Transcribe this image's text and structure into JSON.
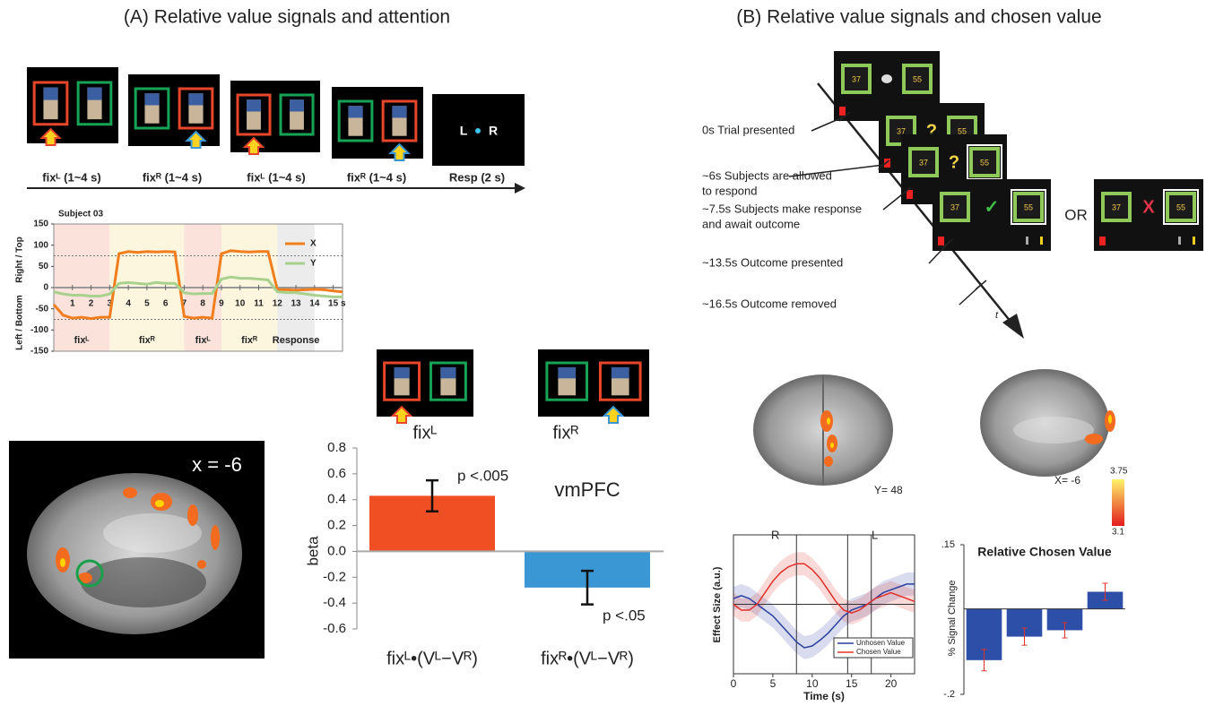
{
  "panels": [
    {
      "title": "(A) Relative value signals and attention"
    },
    {
      "title": "(B) Relative value signals and chosen value"
    }
  ],
  "timeline": {
    "steps": [
      "fixᴸ (1~4 s)",
      "fixᴿ (1~4 s)",
      "fixᴸ (1~4 s)",
      "fixᴿ (1~4 s)",
      "Resp (2 s)"
    ],
    "response_screen": {
      "left": "L",
      "right": "R"
    }
  },
  "brain_a": {
    "label": "x  = -6"
  },
  "flow": {
    "screens": [
      {
        "left": "37",
        "right": "55"
      },
      {
        "left": "37",
        "mid": "?",
        "right": "55"
      },
      {
        "left": "37",
        "mid": "?",
        "right": "55"
      },
      {
        "left": "37",
        "mid": "✓",
        "right": "55"
      },
      {
        "left": "37",
        "mid": "X",
        "right": "55"
      }
    ],
    "or": "OR",
    "events": [
      {
        "lines": [
          "0s Trial presented"
        ]
      },
      {
        "lines": [
          "~6s Subjects are allowed",
          "to respond"
        ]
      },
      {
        "lines": [
          "~7.5s Subjects make response",
          "and await outcome"
        ]
      },
      {
        "lines": [
          "~13.5s Outcome presented"
        ]
      },
      {
        "lines": [
          "~16.5s Outcome removed"
        ]
      }
    ],
    "time_label": "t"
  },
  "brain_b": {
    "coronal_label": "Y= 48",
    "right": "R",
    "left": "L",
    "sagittal_label": "X= -6",
    "colorbar_max": "3.75",
    "colorbar_min": "3.1"
  },
  "chart_data": [
    {
      "type": "line",
      "title": "Subject 03",
      "ylabel_top": "Right / Top",
      "ylabel_bottom": "Left / Bottom",
      "xlabel": "s",
      "x": [
        0,
        0.5,
        1,
        1.5,
        2,
        2.5,
        3,
        3.5,
        4,
        4.5,
        5,
        5.5,
        6,
        6.5,
        7,
        7.5,
        8,
        8.5,
        9,
        9.5,
        10,
        10.5,
        11,
        11.5,
        12,
        12.5,
        13,
        13.5,
        14,
        14.5,
        15,
        15.5
      ],
      "series": [
        {
          "name": "X",
          "color": "#f07d1e",
          "values": [
            -40,
            -65,
            -72,
            -70,
            -73,
            -70,
            -70,
            80,
            85,
            83,
            85,
            84,
            85,
            84,
            -68,
            -72,
            -70,
            -72,
            80,
            87,
            85,
            84,
            85,
            85,
            -5,
            -5,
            -6,
            -5,
            -4,
            -5,
            -8,
            -10
          ]
        },
        {
          "name": "Y",
          "color": "#a9d18e",
          "values": [
            -10,
            -15,
            -18,
            -18,
            -20,
            -20,
            -15,
            10,
            12,
            10,
            8,
            12,
            10,
            10,
            -12,
            -15,
            -14,
            -14,
            20,
            25,
            22,
            22,
            20,
            18,
            -10,
            -12,
            -12,
            -15,
            -18,
            -20,
            -22,
            -22
          ]
        }
      ],
      "xlim": [
        0,
        15.5
      ],
      "xticks": [
        1,
        2,
        3,
        4,
        5,
        6,
        7,
        8,
        9,
        10,
        11,
        12,
        13,
        14,
        15
      ],
      "ylim": [
        -150,
        150
      ],
      "yticks": [
        150,
        100,
        50,
        0,
        -50,
        -100,
        -150
      ],
      "reference_lines": [
        75,
        -75
      ],
      "phases": [
        {
          "label": "fixᴸ",
          "start": 0,
          "end": 3,
          "color": "#fbe3dc"
        },
        {
          "label": "fixᴿ",
          "start": 3,
          "end": 7,
          "color": "#fdf6df"
        },
        {
          "label": "fixᴸ",
          "start": 7,
          "end": 9,
          "color": "#fbe3dc"
        },
        {
          "label": "fixᴿ",
          "start": 9,
          "end": 12,
          "color": "#fdf6df"
        },
        {
          "label": "Response",
          "start": 12,
          "end": 14,
          "color": "#ececec"
        }
      ]
    },
    {
      "type": "bar",
      "ylabel": "beta",
      "categories": [
        "fixᴸ•(Vᴸ−Vᴿ)",
        "fixᴿ•(Vᴸ−Vᴿ)"
      ],
      "values": [
        0.43,
        -0.28
      ],
      "errors": [
        0.12,
        0.13
      ],
      "colors": [
        "#f04e23",
        "#3a97d4"
      ],
      "ylim": [
        -0.6,
        0.8
      ],
      "yticks": [
        0.8,
        0.6,
        0.4,
        0.2,
        {
          "value": 0,
          "label": "0.0"
        },
        -0.2,
        -0.4,
        -0.6
      ],
      "annotations": [
        "p <.005",
        "p <.05",
        "vmPFC"
      ],
      "stimulus_labels": [
        "fixᴸ",
        "fixᴿ"
      ]
    },
    {
      "type": "line",
      "xlabel": "Time (s)",
      "ylabel": "Effect Size (a.u.)",
      "x": [
        0,
        1,
        2,
        3,
        4,
        5,
        6,
        7,
        8,
        9,
        10,
        11,
        12,
        13,
        14,
        15,
        16,
        17,
        18,
        19,
        20,
        21,
        22,
        23
      ],
      "series": [
        {
          "name": "Unhosen Value",
          "color": "#2b3fa0",
          "values": [
            0.1,
            0.15,
            0.1,
            0,
            -0.1,
            -0.2,
            -0.35,
            -0.5,
            -0.65,
            -0.75,
            -0.72,
            -0.62,
            -0.5,
            -0.35,
            -0.2,
            -0.1,
            -0.05,
            0,
            0.1,
            0.2,
            0.25,
            0.3,
            0.35,
            0.35
          ]
        },
        {
          "name": "Chosen Value",
          "color": "#e0302a",
          "values": [
            0,
            -0.1,
            -0.1,
            0,
            0.2,
            0.4,
            0.55,
            0.65,
            0.7,
            0.7,
            0.6,
            0.45,
            0.25,
            0.05,
            -0.1,
            -0.15,
            -0.1,
            0,
            0.1,
            0.15,
            0.2,
            0.15,
            0.1,
            0.05
          ]
        }
      ],
      "xlim": [
        0,
        23
      ],
      "xticks": [
        0,
        5,
        10,
        15,
        20
      ],
      "ylim": [
        -1.2,
        1.2
      ],
      "vertical_lines": [
        8,
        14.5,
        17.5
      ]
    },
    {
      "type": "bar",
      "title": "Relative Chosen Value",
      "ylabel": "% Signal Change",
      "values": [
        -0.12,
        -0.065,
        -0.05,
        0.04
      ],
      "errors": [
        0.025,
        0.02,
        0.018,
        0.02
      ],
      "color": "#2e4fa8",
      "error_color": "#e0302a",
      "ylim": [
        -0.2,
        0.15
      ],
      "yticks": [
        {
          "value": 0.15,
          "label": ".15"
        },
        {
          "value": -0.2,
          "label": "-.2"
        }
      ]
    }
  ]
}
